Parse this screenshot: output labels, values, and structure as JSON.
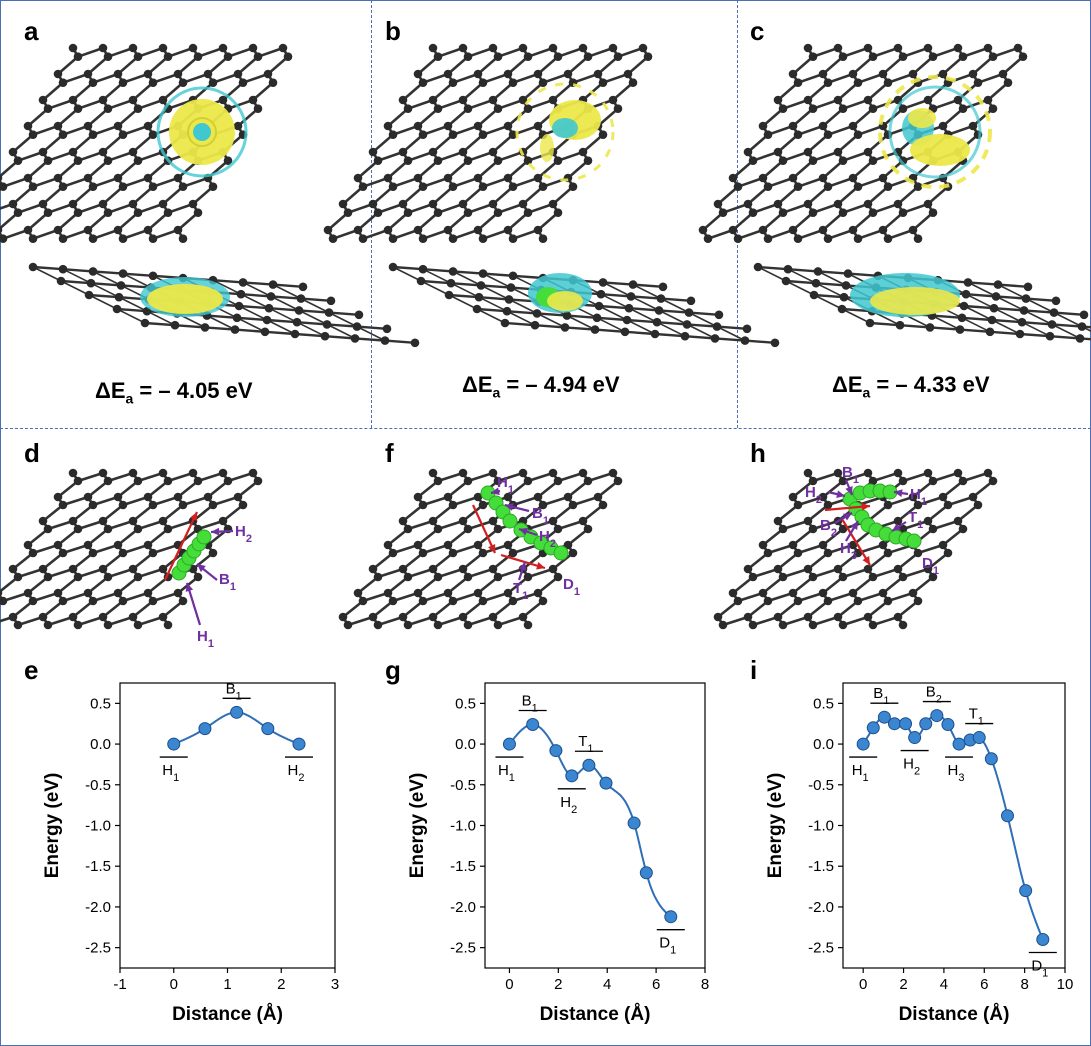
{
  "panels": {
    "a": {
      "label": "a",
      "energy": {
        "symbol": "ΔE",
        "sub": "a",
        "value": " = – 4.05 eV"
      }
    },
    "b": {
      "label": "b",
      "energy": {
        "symbol": "ΔE",
        "sub": "a",
        "value": " = – 4.94 eV"
      }
    },
    "c": {
      "label": "c",
      "energy": {
        "symbol": "ΔE",
        "sub": "a",
        "value": " = – 4.33 eV"
      }
    },
    "d": {
      "label": "d",
      "annotations": [
        {
          "t": "H",
          "s": "2"
        },
        {
          "t": "B",
          "s": "1"
        },
        {
          "t": "H",
          "s": "1"
        }
      ]
    },
    "f": {
      "label": "f",
      "annotations": [
        {
          "t": "H",
          "s": "1"
        },
        {
          "t": "B",
          "s": "1"
        },
        {
          "t": "H",
          "s": "2"
        },
        {
          "t": "T",
          "s": "1"
        },
        {
          "t": "D",
          "s": "1"
        }
      ]
    },
    "h": {
      "label": "h",
      "annotations": [
        {
          "t": "B",
          "s": "1"
        },
        {
          "t": "H",
          "s": "2"
        },
        {
          "t": "H",
          "s": "1"
        },
        {
          "t": "T",
          "s": "1"
        },
        {
          "t": "B",
          "s": "2"
        },
        {
          "t": "H",
          "s": "3"
        },
        {
          "t": "D",
          "s": "1"
        }
      ]
    },
    "e": {
      "label": "e"
    },
    "g": {
      "label": "g"
    },
    "i": {
      "label": "i"
    }
  },
  "colors": {
    "frame": "#4a6fb5",
    "carbon": "#2b2b2b",
    "yellow": "#ece84a",
    "cyan": "#3fc8cf",
    "green": "#45dd3a",
    "arrow": "#d21f1f",
    "annotation": "#7030a0",
    "curve": "#2f6fb8",
    "point": "#3a86d0"
  },
  "chart_data": [
    {
      "panel": "e",
      "type": "line",
      "x": [
        0,
        0.58,
        1.17,
        1.75,
        2.33
      ],
      "y": [
        0.0,
        0.19,
        0.39,
        0.19,
        0.0
      ],
      "xlabel": "Distance (Å)",
      "ylabel": "Energy (eV)",
      "xlim": [
        -1,
        3
      ],
      "ylim": [
        -2.75,
        0.75
      ],
      "xticks": [
        -1,
        0,
        1,
        2,
        3
      ],
      "yticks": [
        0.5,
        0.0,
        -0.5,
        -1.0,
        -1.5,
        -2.0,
        -2.5
      ],
      "xtick_labels": [
        "-1",
        "0",
        "1",
        "2",
        "3"
      ],
      "ytick_labels": [
        "0.5",
        "0.0",
        "-0.5",
        "-1.0",
        "-1.5",
        "-2.0",
        "-2.5"
      ],
      "state_labels": [
        {
          "t": "H",
          "s": "1",
          "x": 0,
          "y": 0.0,
          "pos": "below"
        },
        {
          "t": "B",
          "s": "1",
          "x": 1.17,
          "y": 0.39,
          "pos": "above"
        },
        {
          "t": "H",
          "s": "2",
          "x": 2.33,
          "y": 0.0,
          "pos": "below"
        }
      ]
    },
    {
      "panel": "g",
      "type": "line",
      "x": [
        0,
        0.95,
        1.9,
        2.55,
        3.25,
        3.95,
        5.1,
        5.6,
        6.6
      ],
      "y": [
        0.0,
        0.24,
        -0.08,
        -0.39,
        -0.26,
        -0.48,
        -0.97,
        -1.58,
        -2.12
      ],
      "xlabel": "Distance (Å)",
      "ylabel": "Energy (eV)",
      "xlim": [
        -1,
        8
      ],
      "ylim": [
        -2.75,
        0.75
      ],
      "xticks": [
        0,
        2,
        4,
        6,
        8
      ],
      "yticks": [
        0.5,
        0.0,
        -0.5,
        -1.0,
        -1.5,
        -2.0,
        -2.5
      ],
      "xtick_labels": [
        "0",
        "2",
        "4",
        "6",
        "8"
      ],
      "ytick_labels": [
        "0.5",
        "0.0",
        "-0.5",
        "-1.0",
        "-1.5",
        "-2.0",
        "-2.5"
      ],
      "state_labels": [
        {
          "t": "H",
          "s": "1",
          "x": 0,
          "y": 0.0,
          "pos": "below"
        },
        {
          "t": "B",
          "s": "1",
          "x": 0.95,
          "y": 0.24,
          "pos": "above"
        },
        {
          "t": "H",
          "s": "2",
          "x": 2.55,
          "y": -0.39,
          "pos": "below"
        },
        {
          "t": "T",
          "s": "1",
          "x": 3.25,
          "y": -0.26,
          "pos": "above"
        },
        {
          "t": "D",
          "s": "1",
          "x": 6.6,
          "y": -2.12,
          "pos": "below"
        }
      ]
    },
    {
      "panel": "i",
      "type": "line",
      "x": [
        0,
        0.5,
        1.05,
        1.55,
        2.1,
        2.55,
        3.1,
        3.65,
        4.2,
        4.75,
        5.3,
        5.75,
        6.35,
        7.15,
        8.05,
        8.9
      ],
      "y": [
        0.0,
        0.2,
        0.33,
        0.25,
        0.25,
        0.08,
        0.25,
        0.35,
        0.24,
        0.0,
        0.05,
        0.08,
        -0.18,
        -0.88,
        -1.8,
        -2.4
      ],
      "xlabel": "Distance (Å)",
      "ylabel": "Energy (eV)",
      "xlim": [
        -1,
        10
      ],
      "ylim": [
        -2.75,
        0.75
      ],
      "xticks": [
        0,
        2,
        4,
        6,
        8,
        10
      ],
      "yticks": [
        0.5,
        0.0,
        -0.5,
        -1.0,
        -1.5,
        -2.0,
        -2.5
      ],
      "xtick_labels": [
        "0",
        "2",
        "4",
        "6",
        "8",
        "10"
      ],
      "ytick_labels": [
        "0.5",
        "0.0",
        "-0.5",
        "-1.0",
        "-1.5",
        "-2.0",
        "-2.5"
      ],
      "state_labels": [
        {
          "t": "H",
          "s": "1",
          "x": 0,
          "y": 0.0,
          "pos": "below"
        },
        {
          "t": "B",
          "s": "1",
          "x": 1.05,
          "y": 0.33,
          "pos": "above"
        },
        {
          "t": "H",
          "s": "2",
          "x": 2.55,
          "y": 0.08,
          "pos": "below"
        },
        {
          "t": "B",
          "s": "2",
          "x": 3.65,
          "y": 0.35,
          "pos": "above"
        },
        {
          "t": "H",
          "s": "3",
          "x": 4.75,
          "y": 0.0,
          "pos": "below"
        },
        {
          "t": "T",
          "s": "1",
          "x": 5.75,
          "y": 0.08,
          "pos": "above"
        },
        {
          "t": "D",
          "s": "1",
          "x": 8.9,
          "y": -2.4,
          "pos": "below"
        }
      ]
    }
  ]
}
